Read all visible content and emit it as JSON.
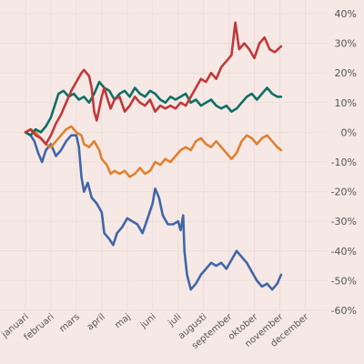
{
  "chart_data": {
    "type": "line",
    "x_unit": "month",
    "categories": [
      "januari",
      "februari",
      "mars",
      "april",
      "maj",
      "juni",
      "juli",
      "augusti",
      "september",
      "oktober",
      "november",
      "december"
    ],
    "ylim": [
      -60,
      40
    ],
    "yticks": [
      40,
      30,
      20,
      10,
      0,
      -10,
      -20,
      -30,
      -40,
      -50,
      -60
    ],
    "ytick_labels": [
      "40%",
      "30%",
      "20%",
      "10%",
      "0%",
      "-10%",
      "-20%",
      "-30%",
      "-40%",
      "-50%",
      "-60%"
    ],
    "grid": true,
    "title": "",
    "xlabel": "",
    "ylabel": "",
    "series": [
      {
        "color": "#4166a8",
        "points": [
          [
            0,
            0
          ],
          [
            0.2,
            -1
          ],
          [
            0.35,
            -3
          ],
          [
            0.5,
            -7
          ],
          [
            0.65,
            -10
          ],
          [
            0.8,
            -6
          ],
          [
            1,
            -4
          ],
          [
            1.2,
            -8
          ],
          [
            1.4,
            -6
          ],
          [
            1.6,
            -3
          ],
          [
            1.8,
            -1
          ],
          [
            2,
            -1
          ],
          [
            2.1,
            -5
          ],
          [
            2.2,
            -15
          ],
          [
            2.3,
            -20
          ],
          [
            2.45,
            -17
          ],
          [
            2.6,
            -22
          ],
          [
            2.8,
            -24
          ],
          [
            3,
            -27
          ],
          [
            3.1,
            -34
          ],
          [
            3.3,
            -36
          ],
          [
            3.45,
            -38
          ],
          [
            3.6,
            -34
          ],
          [
            3.8,
            -32
          ],
          [
            4,
            -29
          ],
          [
            4.2,
            -30
          ],
          [
            4.4,
            -31
          ],
          [
            4.6,
            -34
          ],
          [
            4.8,
            -29
          ],
          [
            5,
            -24
          ],
          [
            5.1,
            -19
          ],
          [
            5.25,
            -22
          ],
          [
            5.4,
            -28
          ],
          [
            5.6,
            -31
          ],
          [
            5.8,
            -31
          ],
          [
            6,
            -30
          ],
          [
            6.1,
            -33
          ],
          [
            6.2,
            -28
          ],
          [
            6.25,
            -40
          ],
          [
            6.35,
            -48
          ],
          [
            6.5,
            -53
          ],
          [
            6.7,
            -51
          ],
          [
            6.9,
            -48
          ],
          [
            7.1,
            -46
          ],
          [
            7.3,
            -44
          ],
          [
            7.5,
            -45
          ],
          [
            7.7,
            -44
          ],
          [
            7.9,
            -46
          ],
          [
            8.1,
            -43
          ],
          [
            8.3,
            -40
          ],
          [
            8.5,
            -42
          ],
          [
            8.7,
            -44
          ],
          [
            8.9,
            -47
          ],
          [
            9.1,
            -50
          ],
          [
            9.3,
            -52
          ],
          [
            9.5,
            -51
          ],
          [
            9.7,
            -53
          ],
          [
            9.9,
            -51
          ],
          [
            10.05,
            -48
          ]
        ]
      },
      {
        "color": "#e08030",
        "points": [
          [
            0,
            0
          ],
          [
            0.2,
            1
          ],
          [
            0.4,
            0
          ],
          [
            0.6,
            -2
          ],
          [
            0.8,
            -4
          ],
          [
            1,
            -5
          ],
          [
            1.2,
            -3
          ],
          [
            1.4,
            -1
          ],
          [
            1.6,
            1
          ],
          [
            1.8,
            2
          ],
          [
            2,
            0
          ],
          [
            2.2,
            -1
          ],
          [
            2.3,
            -4
          ],
          [
            2.5,
            -5
          ],
          [
            2.7,
            -3
          ],
          [
            2.9,
            -6
          ],
          [
            3,
            -9
          ],
          [
            3.2,
            -11
          ],
          [
            3.35,
            -14
          ],
          [
            3.5,
            -13
          ],
          [
            3.7,
            -14
          ],
          [
            3.9,
            -13
          ],
          [
            4.1,
            -15
          ],
          [
            4.3,
            -14
          ],
          [
            4.5,
            -12
          ],
          [
            4.7,
            -14
          ],
          [
            4.9,
            -13
          ],
          [
            5.1,
            -10
          ],
          [
            5.3,
            -11
          ],
          [
            5.5,
            -9
          ],
          [
            5.7,
            -10
          ],
          [
            5.9,
            -8
          ],
          [
            6.1,
            -6
          ],
          [
            6.3,
            -5
          ],
          [
            6.5,
            -6
          ],
          [
            6.7,
            -3
          ],
          [
            6.9,
            -2
          ],
          [
            7.1,
            -4
          ],
          [
            7.3,
            -5
          ],
          [
            7.5,
            -3
          ],
          [
            7.7,
            -5
          ],
          [
            7.9,
            -7
          ],
          [
            8.1,
            -9
          ],
          [
            8.3,
            -7
          ],
          [
            8.5,
            -3
          ],
          [
            8.7,
            -1
          ],
          [
            8.9,
            -2
          ],
          [
            9.1,
            -4
          ],
          [
            9.3,
            -2
          ],
          [
            9.5,
            -1
          ],
          [
            9.7,
            -3
          ],
          [
            9.9,
            -5
          ],
          [
            10.05,
            -6
          ]
        ]
      },
      {
        "color": "#0e6f66",
        "points": [
          [
            0,
            0
          ],
          [
            0.2,
            -1
          ],
          [
            0.4,
            1
          ],
          [
            0.6,
            0
          ],
          [
            0.8,
            2
          ],
          [
            1,
            5
          ],
          [
            1.15,
            9
          ],
          [
            1.3,
            13
          ],
          [
            1.5,
            14
          ],
          [
            1.7,
            12
          ],
          [
            1.9,
            13
          ],
          [
            2.1,
            11
          ],
          [
            2.3,
            12
          ],
          [
            2.5,
            10
          ],
          [
            2.7,
            13
          ],
          [
            2.9,
            17
          ],
          [
            3.1,
            15
          ],
          [
            3.3,
            14
          ],
          [
            3.5,
            11
          ],
          [
            3.7,
            13
          ],
          [
            3.9,
            14
          ],
          [
            4.1,
            12
          ],
          [
            4.3,
            15
          ],
          [
            4.5,
            13
          ],
          [
            4.7,
            12
          ],
          [
            4.9,
            14
          ],
          [
            5.1,
            13
          ],
          [
            5.3,
            11
          ],
          [
            5.5,
            10
          ],
          [
            5.7,
            12
          ],
          [
            5.9,
            11
          ],
          [
            6.1,
            12
          ],
          [
            6.3,
            13
          ],
          [
            6.5,
            10
          ],
          [
            6.7,
            11
          ],
          [
            6.9,
            9
          ],
          [
            7.1,
            10
          ],
          [
            7.3,
            11
          ],
          [
            7.5,
            9
          ],
          [
            7.7,
            8
          ],
          [
            7.9,
            9
          ],
          [
            8.1,
            7
          ],
          [
            8.3,
            8
          ],
          [
            8.5,
            10
          ],
          [
            8.7,
            12
          ],
          [
            8.9,
            13
          ],
          [
            9.1,
            11
          ],
          [
            9.3,
            13
          ],
          [
            9.5,
            15
          ],
          [
            9.7,
            13
          ],
          [
            9.9,
            12
          ],
          [
            10.05,
            12
          ]
        ]
      },
      {
        "color": "#c0393b",
        "points": [
          [
            0,
            0
          ],
          [
            0.2,
            1
          ],
          [
            0.4,
            -1
          ],
          [
            0.6,
            -2
          ],
          [
            0.8,
            -4
          ],
          [
            1,
            -1
          ],
          [
            1.2,
            3
          ],
          [
            1.4,
            6
          ],
          [
            1.6,
            10
          ],
          [
            1.8,
            14
          ],
          [
            2,
            17
          ],
          [
            2.2,
            20
          ],
          [
            2.3,
            21
          ],
          [
            2.5,
            19
          ],
          [
            2.6,
            15
          ],
          [
            2.7,
            7
          ],
          [
            2.8,
            4
          ],
          [
            2.9,
            8
          ],
          [
            3,
            12
          ],
          [
            3.1,
            15
          ],
          [
            3.2,
            12
          ],
          [
            3.35,
            8
          ],
          [
            3.5,
            11
          ],
          [
            3.7,
            12
          ],
          [
            3.9,
            7
          ],
          [
            4.1,
            9
          ],
          [
            4.3,
            12
          ],
          [
            4.5,
            10
          ],
          [
            4.7,
            9
          ],
          [
            4.9,
            11
          ],
          [
            5.1,
            7
          ],
          [
            5.3,
            9
          ],
          [
            5.5,
            8
          ],
          [
            5.7,
            9
          ],
          [
            5.9,
            8
          ],
          [
            6.1,
            10
          ],
          [
            6.3,
            9
          ],
          [
            6.5,
            12
          ],
          [
            6.7,
            15
          ],
          [
            6.9,
            18
          ],
          [
            7.1,
            17
          ],
          [
            7.3,
            20
          ],
          [
            7.5,
            18
          ],
          [
            7.7,
            22
          ],
          [
            7.9,
            24
          ],
          [
            8.1,
            26
          ],
          [
            8.25,
            37
          ],
          [
            8.4,
            28
          ],
          [
            8.6,
            30
          ],
          [
            8.8,
            28
          ],
          [
            9,
            25
          ],
          [
            9.2,
            30
          ],
          [
            9.4,
            32
          ],
          [
            9.6,
            28
          ],
          [
            9.8,
            27
          ],
          [
            10.05,
            29
          ]
        ]
      }
    ]
  }
}
